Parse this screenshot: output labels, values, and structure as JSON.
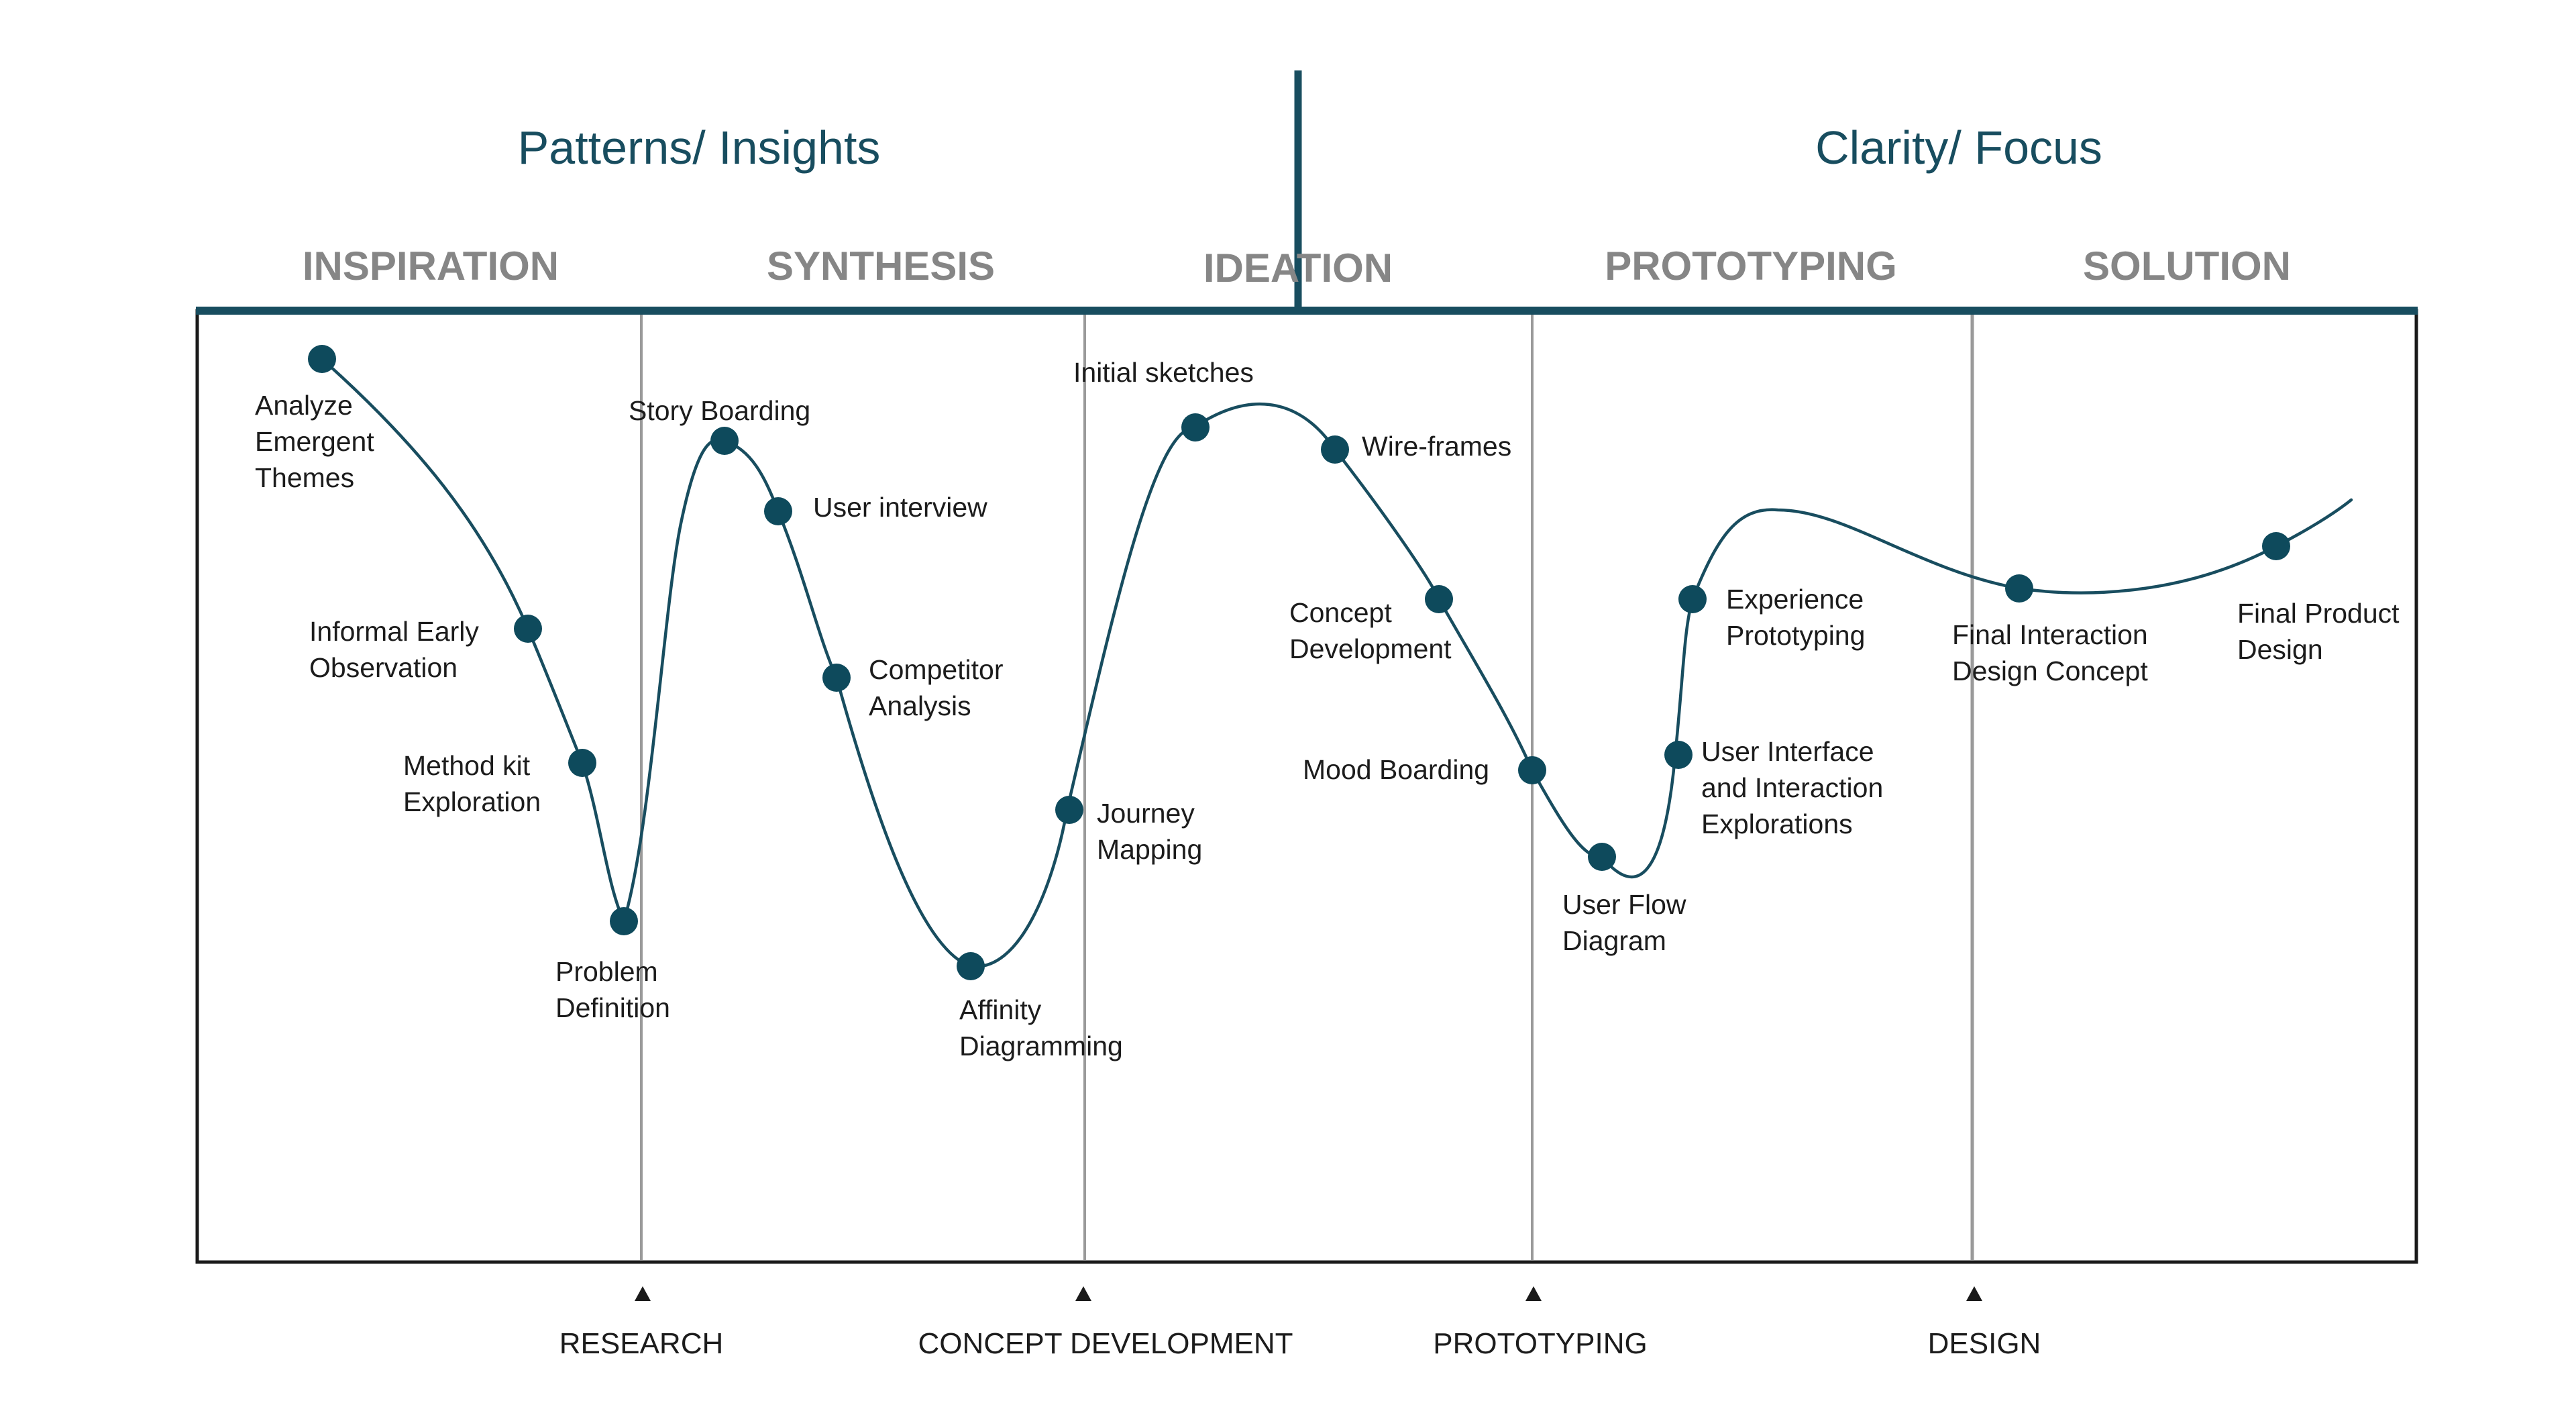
{
  "colors": {
    "accent": "#184d5f",
    "curve": "#184d5f",
    "node": "#0e4a5c",
    "phase_text": "#868686",
    "frame": "#1a1a1a",
    "divider": "#9a9a9a",
    "label_text": "#1c1c1c"
  },
  "headers": {
    "left": "Patterns/ Insights",
    "right": "Clarity/ Focus"
  },
  "phases": [
    {
      "label": "INSPIRATION"
    },
    {
      "label": "SYNTHESIS"
    },
    {
      "label": "IDEATION"
    },
    {
      "label": "PROTOTYPING"
    },
    {
      "label": "SOLUTION"
    }
  ],
  "nodes": [
    {
      "lines": [
        "Analyze",
        "Emergent",
        "Themes"
      ]
    },
    {
      "lines": [
        "Informal Early",
        "Observation"
      ]
    },
    {
      "lines": [
        "Method kit",
        "Exploration"
      ]
    },
    {
      "lines": [
        "Problem",
        "Definition"
      ]
    },
    {
      "lines": [
        "Story Boarding"
      ]
    },
    {
      "lines": [
        "User interview"
      ]
    },
    {
      "lines": [
        "Competitor",
        "Analysis"
      ]
    },
    {
      "lines": [
        "Affinity",
        "Diagramming"
      ]
    },
    {
      "lines": [
        "Journey",
        "Mapping"
      ]
    },
    {
      "lines": [
        "Initial sketches"
      ]
    },
    {
      "lines": [
        "Wire-frames"
      ]
    },
    {
      "lines": [
        "Concept",
        "Development"
      ]
    },
    {
      "lines": [
        "Mood Boarding"
      ]
    },
    {
      "lines": [
        "User Flow",
        "Diagram"
      ]
    },
    {
      "lines": [
        "User Interface",
        "and Interaction",
        "Explorations"
      ]
    },
    {
      "lines": [
        "Experience",
        "Prototyping"
      ]
    },
    {
      "lines": [
        "Final Interaction",
        "Design Concept"
      ]
    },
    {
      "lines": [
        "Final Product",
        "Design"
      ]
    }
  ],
  "milestones": [
    {
      "label": "RESEARCH"
    },
    {
      "label": "CONCEPT DEVELOPMENT"
    },
    {
      "label": "PROTOTYPING"
    },
    {
      "label": "DESIGN"
    }
  ]
}
